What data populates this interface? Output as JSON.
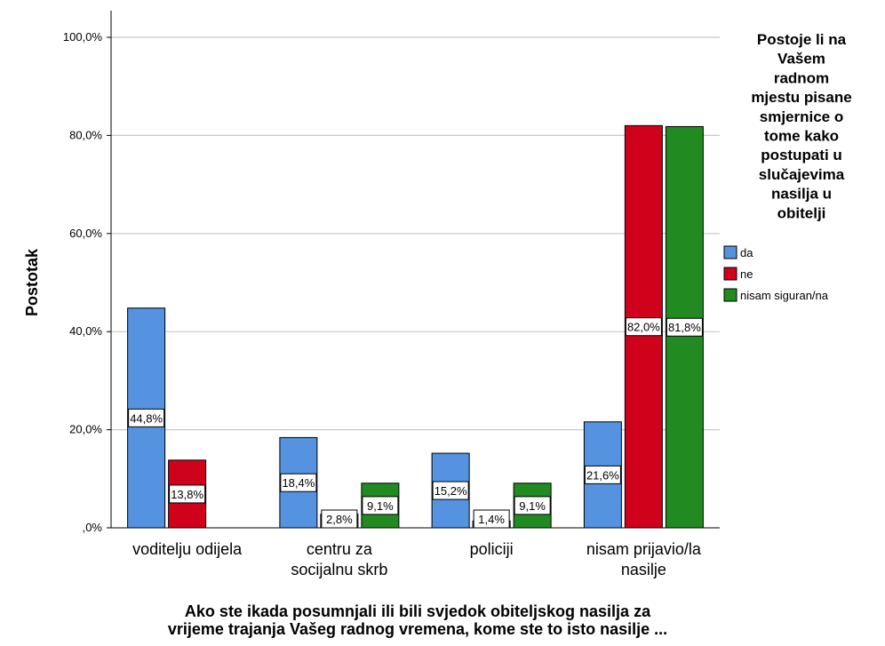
{
  "chart_data": {
    "type": "bar",
    "categories": [
      [
        "voditelju odijela"
      ],
      [
        "centru za",
        "socijalnu skrb"
      ],
      [
        "policiji"
      ],
      [
        "nisam prijavio/la",
        "nasilje"
      ]
    ],
    "series": [
      {
        "name": "da",
        "color": "#5592e0",
        "values": [
          44.8,
          18.4,
          15.2,
          21.6
        ],
        "labels": [
          "44,8%",
          "18,4%",
          "15,2%",
          "21,6%"
        ]
      },
      {
        "name": "ne",
        "color": "#d0021b",
        "values": [
          13.8,
          2.8,
          1.4,
          82.0
        ],
        "labels": [
          "13,8%",
          "2,8%",
          "1,4%",
          "82,0%"
        ]
      },
      {
        "name": "nisam siguran/na",
        "color": "#218a21",
        "values": [
          0.0,
          9.1,
          9.1,
          81.8
        ],
        "labels": [
          "",
          "9,1%",
          "9,1%",
          "81,8%"
        ]
      }
    ],
    "ylabel": "Postotak",
    "xlabel": [
      "Ako ste ikada posumnjali ili bili svjedok obiteljskog nasilja za",
      "vrijeme trajanja Vašeg radnog vremena, kome ste to isto nasilje ..."
    ],
    "ylim": [
      0,
      100
    ],
    "yticks": [
      0,
      20,
      40,
      60,
      80,
      100
    ],
    "ytick_labels": [
      ",0%",
      "20,0%",
      "40,0%",
      "60,0%",
      "80,0%",
      "100,0%"
    ],
    "grid": true,
    "legend_title": [
      "Postoje li na",
      "Vašem",
      "radnom",
      "mjestu pisane",
      "smjernice o",
      "tome kako",
      "postupati u",
      "slučajevima",
      "nasilja u",
      "obitelji"
    ],
    "legend_position": "right"
  }
}
